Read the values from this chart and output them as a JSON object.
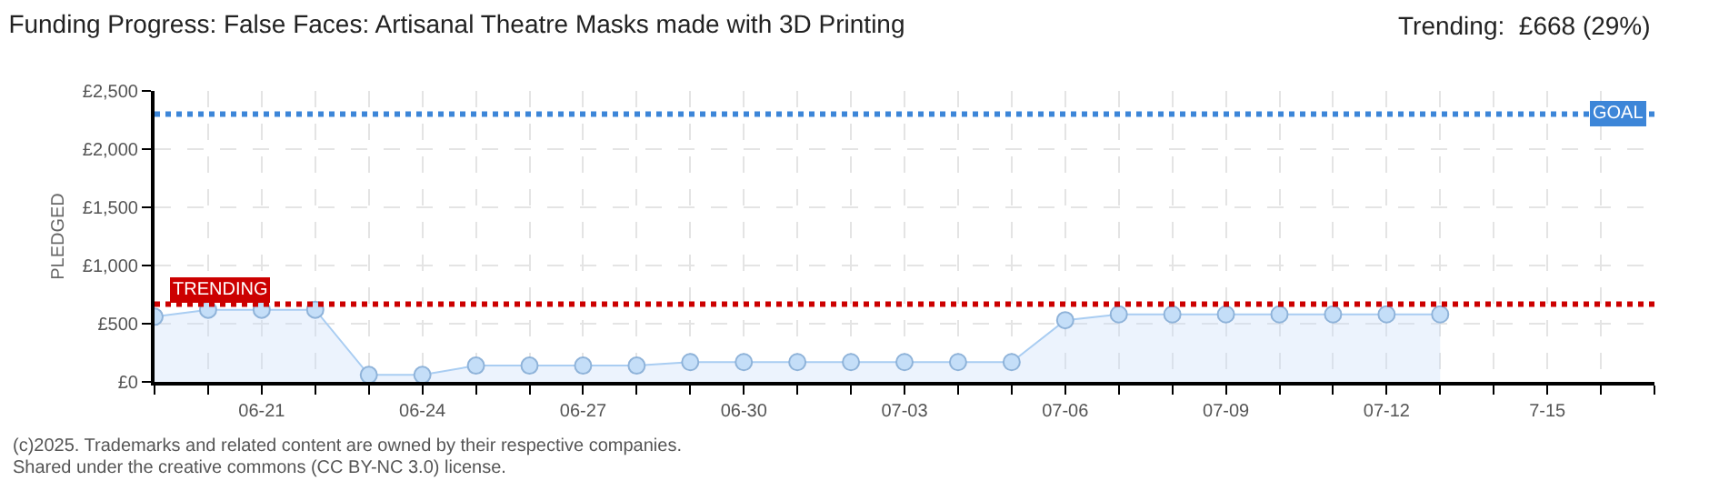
{
  "chart_data": {
    "type": "area",
    "title": "Funding Progress: False Faces: Artisanal Theatre Masks made with 3D Printing",
    "subtitle": "Trending:  £668 (29%)",
    "ylabel": "PLEDGED",
    "x": [
      "--06-19",
      "--06-20",
      "--06-21",
      "--06-22",
      "--06-23",
      "--06-24",
      "--06-25",
      "--06-26",
      "--06-27",
      "--06-28",
      "--06-29",
      "--06-30",
      "--07-01",
      "--07-02",
      "--07-03",
      "--07-04",
      "--07-05",
      "--07-06",
      "--07-07",
      "--07-08",
      "--07-09",
      "--07-10",
      "--07-11",
      "--07-12",
      "--07-13"
    ],
    "series": [
      {
        "color": "#a9cdf2",
        "values": [
          560,
          620,
          620,
          620,
          60,
          60,
          140,
          140,
          140,
          140,
          170,
          170,
          170,
          170,
          170,
          170,
          170,
          530,
          580,
          580,
          580,
          580,
          580,
          580,
          580
        ]
      }
    ],
    "xlim": [
      "--06-19",
      "--07-17"
    ],
    "xticks": [
      {
        "value": "--06-19",
        "label": null
      },
      {
        "value": "--06-20",
        "label": null
      },
      {
        "value": "--06-21",
        "label": "06-21"
      },
      {
        "value": "--06-22",
        "label": null
      },
      {
        "value": "--06-23",
        "label": null
      },
      {
        "value": "--06-24",
        "label": "06-24"
      },
      {
        "value": "--06-25",
        "label": null
      },
      {
        "value": "--06-26",
        "label": null
      },
      {
        "value": "--06-27",
        "label": "06-27"
      },
      {
        "value": "--06-28",
        "label": null
      },
      {
        "value": "--06-29",
        "label": null
      },
      {
        "value": "--06-30",
        "label": "06-30"
      },
      {
        "value": "--07-01",
        "label": null
      },
      {
        "value": "--07-02",
        "label": null
      },
      {
        "value": "--07-03",
        "label": "07-03"
      },
      {
        "value": "--07-04",
        "label": null
      },
      {
        "value": "--07-05",
        "label": null
      },
      {
        "value": "--07-06",
        "label": "07-06"
      },
      {
        "value": "--07-07",
        "label": null
      },
      {
        "value": "--07-08",
        "label": null
      },
      {
        "value": "--07-09",
        "label": "07-09"
      },
      {
        "value": "--07-10",
        "label": null
      },
      {
        "value": "--07-11",
        "label": null
      },
      {
        "value": "--07-12",
        "label": "07-12"
      },
      {
        "value": "--07-13",
        "label": null
      },
      {
        "value": "--07-14",
        "label": null
      },
      {
        "value": "--07-15",
        "label": "7-15"
      },
      {
        "value": "--07-16",
        "label": null
      },
      {
        "value": "--07-17",
        "label": null
      }
    ],
    "ylim": [
      0,
      2500
    ],
    "yticks": [
      {
        "value": 0,
        "label": "£0"
      },
      {
        "value": 500,
        "label": "£500"
      },
      {
        "value": 1000,
        "label": "£1,000"
      },
      {
        "value": 1500,
        "label": "£1,500"
      },
      {
        "value": 2000,
        "label": "£2,000"
      },
      {
        "value": 2500,
        "label": "£2,500"
      }
    ],
    "ref_lines": [
      {
        "axis": "y",
        "value": 2300,
        "label": "GOAL",
        "color": "#3d86d8",
        "line_style": "dotted"
      },
      {
        "axis": "y",
        "value": 668,
        "label": "TRENDING",
        "color": "#cc0000",
        "line_style": "dotted"
      }
    ],
    "annotations": [
      "(c)2025. Trademarks and related content are owned by their respective companies.",
      "Shared under the creative commons (CC BY-NC 3.0) license."
    ],
    "grid": true,
    "marker": "circle",
    "line_style": "solid"
  }
}
